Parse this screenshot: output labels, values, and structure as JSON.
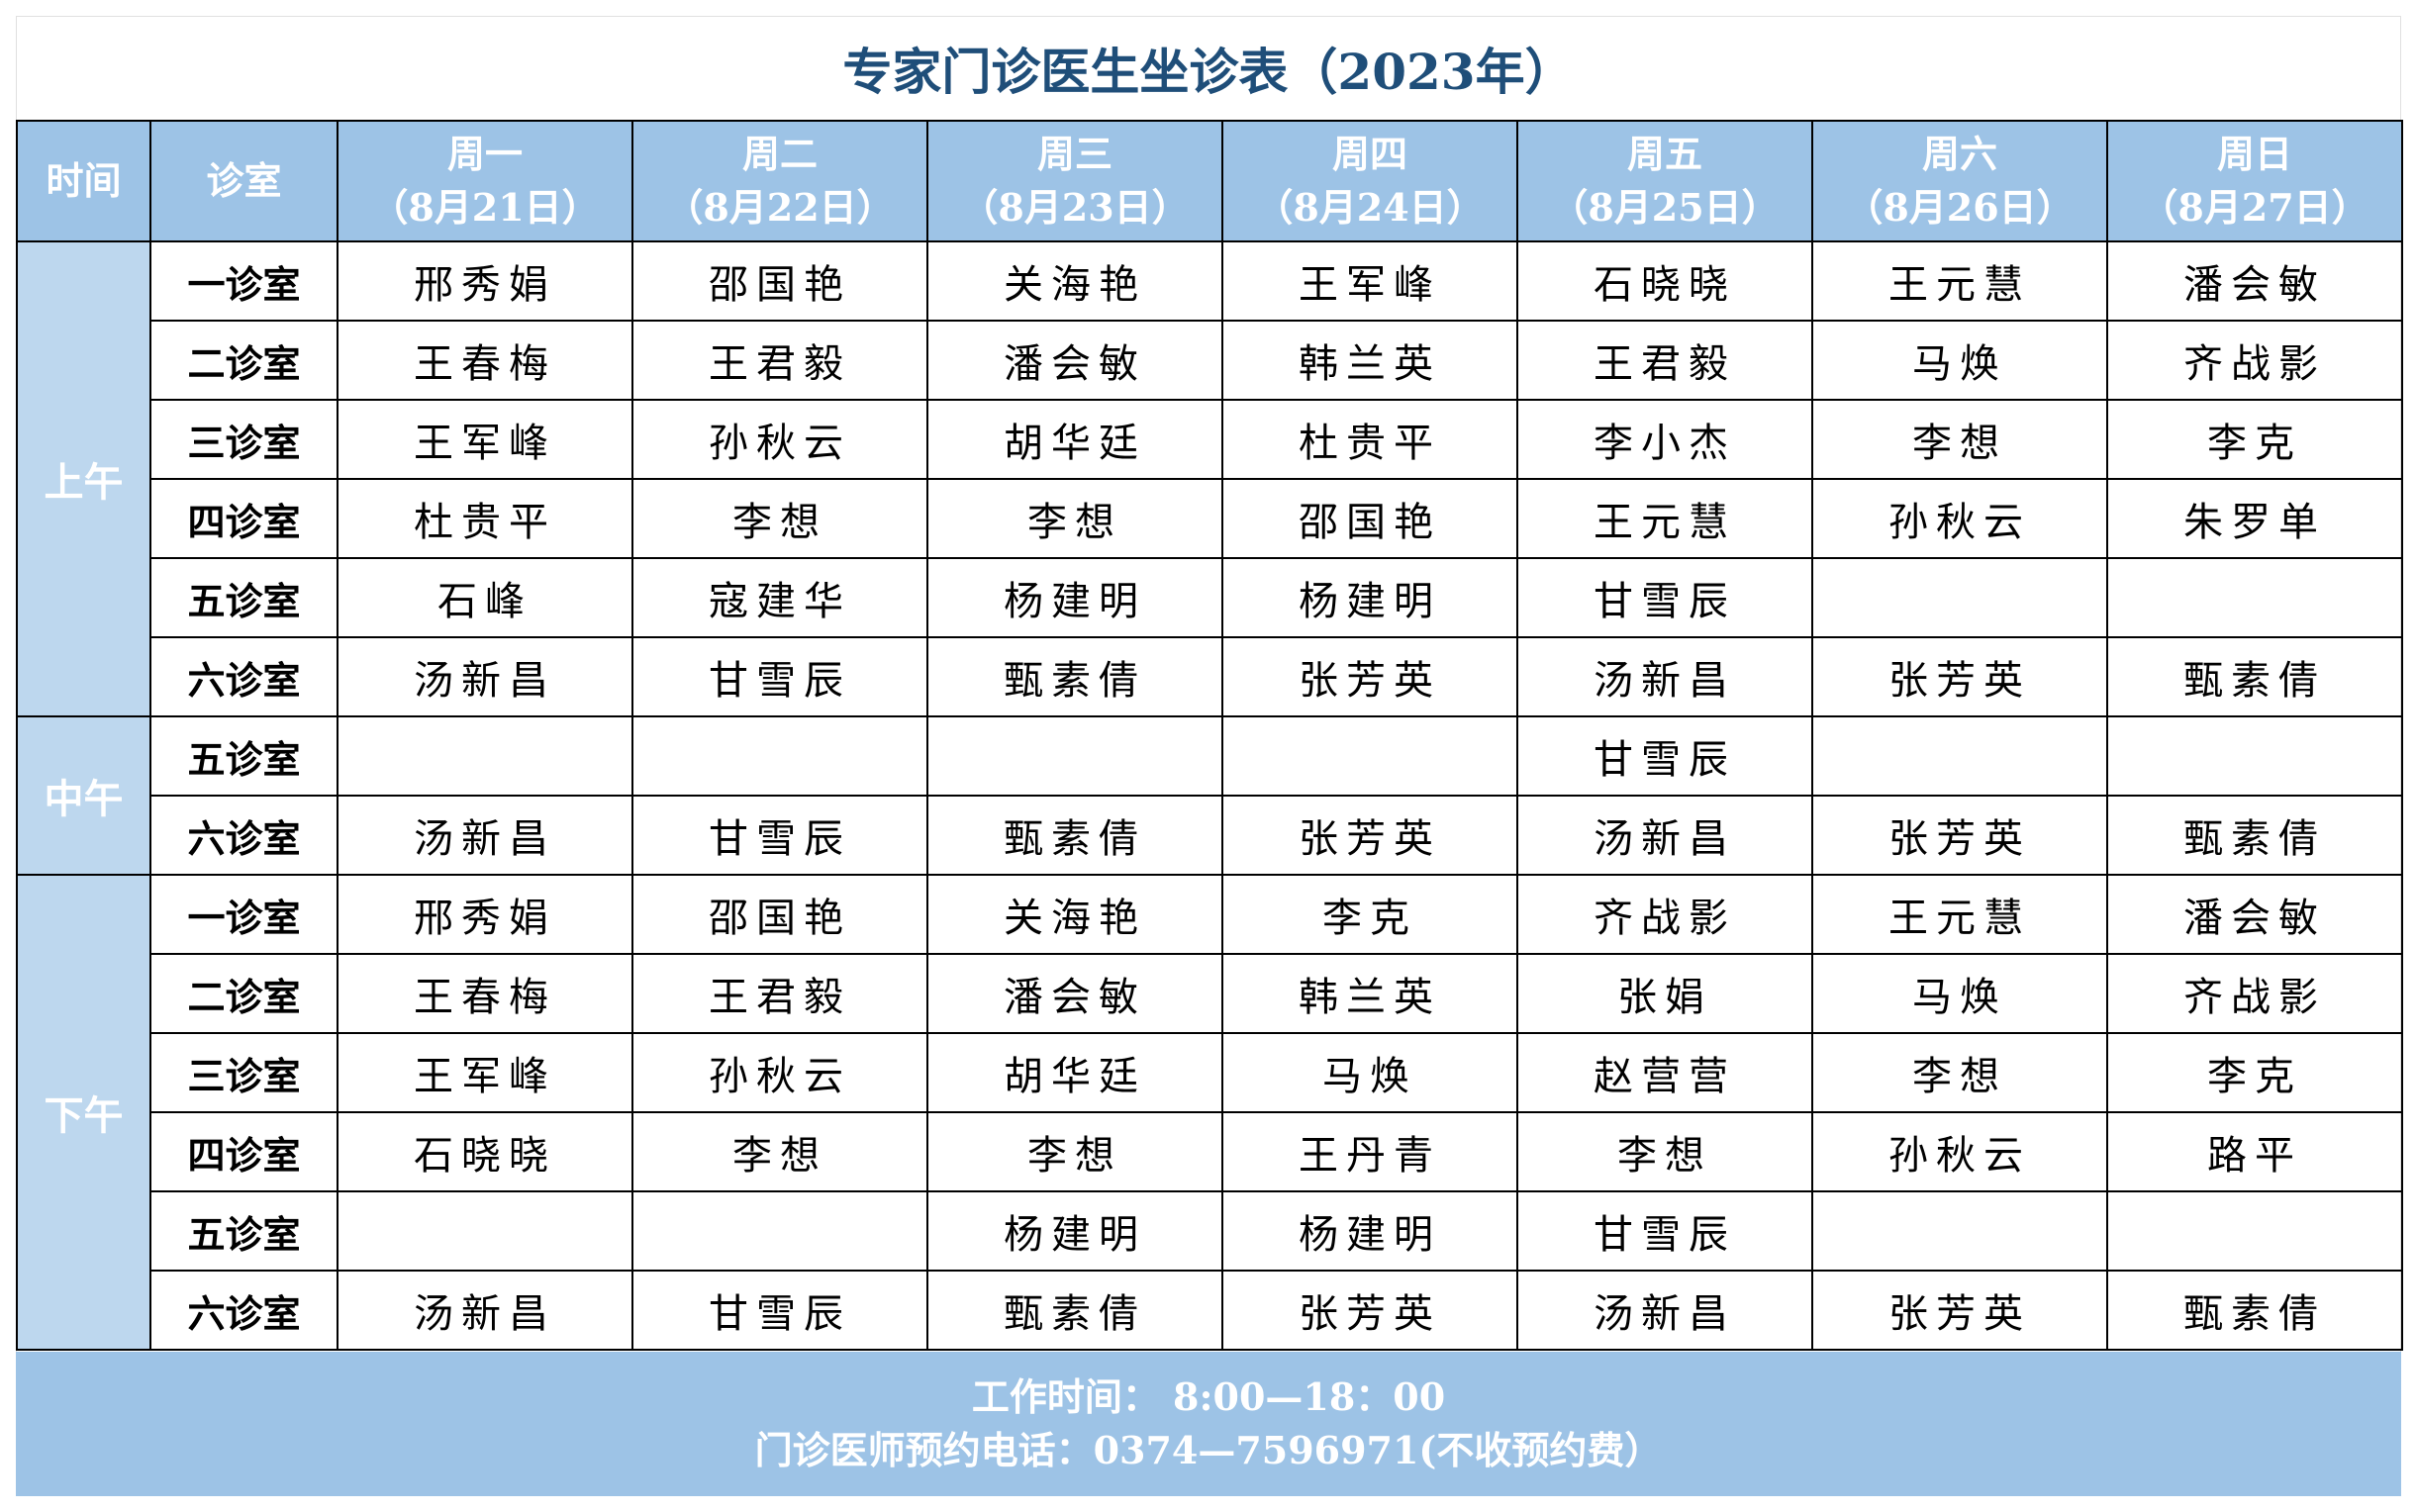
{
  "title": "专家门诊医生坐诊表（2023年）",
  "header": {
    "time_label": "时间",
    "room_label": "诊室",
    "days": [
      {
        "weekday": "周一",
        "date": "（8月21日）"
      },
      {
        "weekday": "周二",
        "date": "（8月22日）"
      },
      {
        "weekday": "周三",
        "date": "（8月23日）"
      },
      {
        "weekday": "周四",
        "date": "（8月24日）"
      },
      {
        "weekday": "周五",
        "date": "（8月25日）"
      },
      {
        "weekday": "周六",
        "date": "（8月26日）"
      },
      {
        "weekday": "周日",
        "date": "（8月27日）"
      }
    ]
  },
  "periods": [
    {
      "label": "上午",
      "rows": [
        {
          "room": "一诊室",
          "doctors": [
            "邢秀娟",
            "邵国艳",
            "关海艳",
            "王军峰",
            "石晓晓",
            "王元慧",
            "潘会敏"
          ]
        },
        {
          "room": "二诊室",
          "doctors": [
            "王春梅",
            "王君毅",
            "潘会敏",
            "韩兰英",
            "王君毅",
            "马焕",
            "齐战影"
          ]
        },
        {
          "room": "三诊室",
          "doctors": [
            "王军峰",
            "孙秋云",
            "胡华廷",
            "杜贵平",
            "李小杰",
            "李想",
            "李克"
          ]
        },
        {
          "room": "四诊室",
          "doctors": [
            "杜贵平",
            "李想",
            "李想",
            "邵国艳",
            "王元慧",
            "孙秋云",
            "朱罗单"
          ]
        },
        {
          "room": "五诊室",
          "doctors": [
            "石峰",
            "寇建华",
            "杨建明",
            "杨建明",
            "甘雪辰",
            "",
            ""
          ]
        },
        {
          "room": "六诊室",
          "doctors": [
            "汤新昌",
            "甘雪辰",
            "甄素倩",
            "张芳英",
            "汤新昌",
            "张芳英",
            "甄素倩"
          ]
        }
      ]
    },
    {
      "label": "中午",
      "rows": [
        {
          "room": "五诊室",
          "doctors": [
            "",
            "",
            "",
            "",
            "甘雪辰",
            "",
            ""
          ]
        },
        {
          "room": "六诊室",
          "doctors": [
            "汤新昌",
            "甘雪辰",
            "甄素倩",
            "张芳英",
            "汤新昌",
            "张芳英",
            "甄素倩"
          ]
        }
      ]
    },
    {
      "label": "下午",
      "rows": [
        {
          "room": "一诊室",
          "doctors": [
            "邢秀娟",
            "邵国艳",
            "关海艳",
            "李克",
            "齐战影",
            "王元慧",
            "潘会敏"
          ]
        },
        {
          "room": "二诊室",
          "doctors": [
            "王春梅",
            "王君毅",
            "潘会敏",
            "韩兰英",
            "张娟",
            "马焕",
            "齐战影"
          ]
        },
        {
          "room": "三诊室",
          "doctors": [
            "王军峰",
            "孙秋云",
            "胡华廷",
            "马焕",
            "赵营营",
            "李想",
            "李克"
          ]
        },
        {
          "room": "四诊室",
          "doctors": [
            "石晓晓",
            "李想",
            "李想",
            "王丹青",
            "李想",
            "孙秋云",
            "路平"
          ]
        },
        {
          "room": "五诊室",
          "doctors": [
            "",
            "",
            "杨建明",
            "杨建明",
            "甘雪辰",
            "",
            ""
          ]
        },
        {
          "room": "六诊室",
          "doctors": [
            "汤新昌",
            "甘雪辰",
            "甄素倩",
            "张芳英",
            "汤新昌",
            "张芳英",
            "甄素倩"
          ]
        }
      ]
    }
  ],
  "footer": {
    "work_hours": "工作时间：  8:00—18：00",
    "phone": "门诊医师预约电话：0374—7596971(不收预约费）"
  },
  "colors": {
    "title": "#1f4e79",
    "header_bg": "#9dc3e6",
    "period_bg": "#bdd7ee"
  }
}
